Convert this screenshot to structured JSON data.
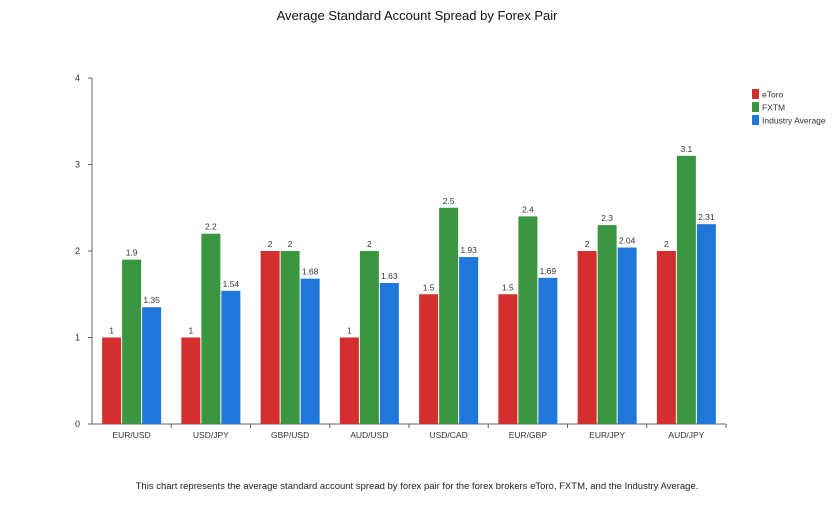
{
  "chart_data": {
    "type": "bar",
    "title": "Average Standard Account Spread by Forex Pair",
    "xlabel": "",
    "ylabel": "",
    "ylim": [
      0,
      4
    ],
    "yticks": [
      "0",
      "1",
      "2",
      "3",
      "4"
    ],
    "categories": [
      "EUR/USD",
      "USD/JPY",
      "GBP/USD",
      "AUD/USD",
      "USD/CAD",
      "EUR/GBP",
      "EUR/JPY",
      "AUD/JPY"
    ],
    "series": [
      {
        "name": "eToro",
        "color": "#d32f2f",
        "values": [
          1,
          1,
          2,
          1,
          1.5,
          1.5,
          2,
          2
        ],
        "labels": [
          "1",
          "1",
          "2",
          "1",
          "1.5",
          "1.5",
          "2",
          "2"
        ]
      },
      {
        "name": "FXTM",
        "color": "#3a9640",
        "values": [
          1.9,
          2.2,
          2,
          2,
          2.5,
          2.4,
          2.3,
          3.1
        ],
        "labels": [
          "1.9",
          "2.2",
          "2",
          "2",
          "2.5",
          "2.4",
          "2.3",
          "3.1"
        ]
      },
      {
        "name": "Industry Average",
        "color": "#1f77d9",
        "values": [
          1.35,
          1.54,
          1.68,
          1.63,
          1.93,
          1.69,
          2.04,
          2.31
        ],
        "labels": [
          "1.35",
          "1.54",
          "1.68",
          "1.63",
          "1.93",
          "1.69",
          "2.04",
          "2.31"
        ]
      }
    ],
    "legend_position": "right",
    "caption": "This chart represents the average standard account spread by forex pair for the forex brokers eToro, FXTM, and the Industry Average."
  }
}
